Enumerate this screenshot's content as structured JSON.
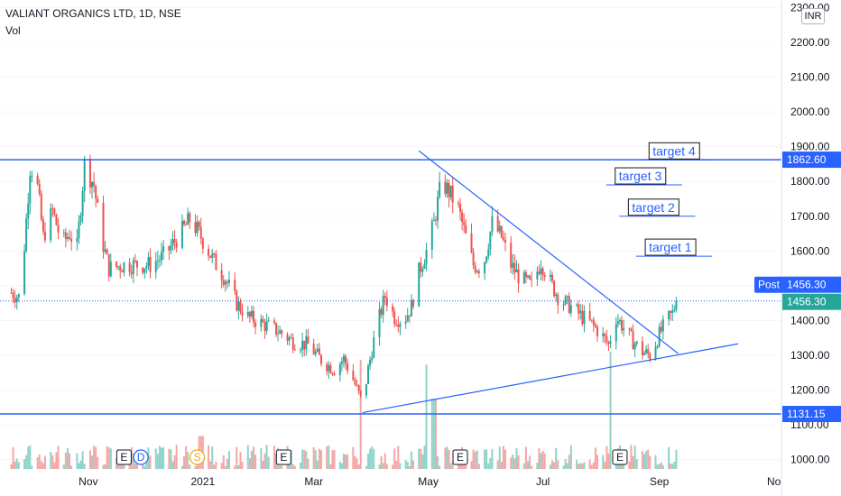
{
  "header": {
    "title": "VALIANT ORGANICS LTD, 1D, NSE",
    "indicator": "Vol",
    "currency": "INR"
  },
  "colors": {
    "up": "#26a69a",
    "down": "#ef5350",
    "line": "#2962ff",
    "grid": "#e0e3eb"
  },
  "chart_data": {
    "type": "candlestick",
    "symbol": "VALIANT ORGANICS LTD",
    "interval": "1D",
    "exchange": "NSE",
    "ylim": [
      960,
      2330
    ],
    "y_ticks": [
      1000,
      1100,
      1200,
      1300,
      1400,
      1500,
      1600,
      1700,
      1800,
      1900,
      2000,
      2100,
      2200,
      2300
    ],
    "y_tick_labels": [
      "1000.00",
      "1100.00",
      "1200.00",
      "1300.00",
      "1400.00",
      "1500.00",
      "1600.00",
      "1700.00",
      "1800.00",
      "1900.00",
      "2000.00",
      "2100.00",
      "2200.00",
      "2300.00"
    ],
    "x_ticks": [
      "Nov",
      "2021",
      "Mar",
      "May",
      "Jul",
      "Sep",
      "No"
    ],
    "x_tick_dates": [
      "2020-11-01",
      "2021-01-01",
      "2021-03-01",
      "2021-05-01",
      "2021-07-01",
      "2021-09-01",
      "2021-11-01"
    ],
    "x_range": [
      "2020-09-15",
      "2021-11-05"
    ],
    "last_price": 1456.3,
    "last_price_label": "1456.30",
    "post_label": "Post",
    "post_price_label": "1456.30",
    "horizontal_levels": [
      {
        "value": 1862.6,
        "label": "1862.60"
      },
      {
        "value": 1131.15,
        "label": "1131.15"
      }
    ],
    "trendlines": [
      {
        "points": [
          [
            "2021-04-26",
            1888
          ],
          [
            "2021-09-11",
            1305
          ]
        ]
      },
      {
        "points": [
          [
            "2021-03-27",
            1135
          ],
          [
            "2021-10-13",
            1333
          ]
        ]
      }
    ],
    "targets": [
      {
        "label": "target 4",
        "date": "2021-09-08",
        "value": 1862
      },
      {
        "label": "target 3",
        "date": "2021-08-21",
        "value": 1790
      },
      {
        "label": "target 2",
        "date": "2021-08-28",
        "value": 1700
      },
      {
        "label": "target 1",
        "date": "2021-09-06",
        "value": 1585
      }
    ],
    "event_markers": [
      {
        "type": "E",
        "date": "2020-11-20"
      },
      {
        "type": "D",
        "date": "2020-11-29"
      },
      {
        "type": "S",
        "date": "2020-12-29"
      },
      {
        "type": "E",
        "date": "2021-02-13"
      },
      {
        "type": "E",
        "date": "2021-05-18"
      },
      {
        "type": "E",
        "date": "2021-08-11"
      }
    ],
    "price_path": [
      [
        "2020-09-21",
        1480
      ],
      [
        "2020-09-26",
        1465
      ],
      [
        "2020-10-01",
        1840
      ],
      [
        "2020-10-04",
        1830
      ],
      [
        "2020-10-08",
        1640
      ],
      [
        "2020-10-13",
        1715
      ],
      [
        "2020-10-18",
        1620
      ],
      [
        "2020-10-22",
        1650
      ],
      [
        "2020-10-26",
        1610
      ],
      [
        "2020-10-30",
        1850
      ],
      [
        "2020-11-04",
        1790
      ],
      [
        "2020-11-08",
        1640
      ],
      [
        "2020-11-12",
        1550
      ],
      [
        "2020-11-20",
        1560
      ],
      [
        "2020-11-26",
        1560
      ],
      [
        "2020-12-04",
        1560
      ],
      [
        "2020-12-12",
        1590
      ],
      [
        "2020-12-20",
        1650
      ],
      [
        "2020-12-25",
        1690
      ],
      [
        "2020-12-29",
        1660
      ],
      [
        "2021-01-03",
        1610
      ],
      [
        "2021-01-08",
        1560
      ],
      [
        "2021-01-13",
        1520
      ],
      [
        "2021-01-19",
        1450
      ],
      [
        "2021-01-25",
        1410
      ],
      [
        "2021-02-02",
        1390
      ],
      [
        "2021-02-10",
        1370
      ],
      [
        "2021-02-18",
        1340
      ],
      [
        "2021-02-26",
        1330
      ],
      [
        "2021-03-06",
        1280
      ],
      [
        "2021-03-12",
        1260
      ],
      [
        "2021-03-17",
        1290
      ],
      [
        "2021-03-22",
        1230
      ],
      [
        "2021-03-27",
        1160
      ],
      [
        "2021-03-30",
        1260
      ],
      [
        "2021-04-03",
        1370
      ],
      [
        "2021-04-08",
        1470
      ],
      [
        "2021-04-13",
        1410
      ],
      [
        "2021-04-18",
        1400
      ],
      [
        "2021-04-22",
        1440
      ],
      [
        "2021-04-26",
        1540
      ],
      [
        "2021-04-30",
        1600
      ],
      [
        "2021-05-04",
        1680
      ],
      [
        "2021-05-08",
        1800
      ],
      [
        "2021-05-12",
        1770
      ],
      [
        "2021-05-17",
        1720
      ],
      [
        "2021-05-21",
        1640
      ],
      [
        "2021-05-25",
        1560
      ],
      [
        "2021-05-30",
        1550
      ],
      [
        "2021-06-04",
        1680
      ],
      [
        "2021-06-09",
        1640
      ],
      [
        "2021-06-14",
        1560
      ],
      [
        "2021-06-19",
        1520
      ],
      [
        "2021-06-25",
        1500
      ],
      [
        "2021-06-30",
        1570
      ],
      [
        "2021-07-05",
        1510
      ],
      [
        "2021-07-10",
        1460
      ],
      [
        "2021-07-16",
        1440
      ],
      [
        "2021-07-22",
        1410
      ],
      [
        "2021-07-27",
        1390
      ],
      [
        "2021-08-01",
        1360
      ],
      [
        "2021-08-05",
        1330
      ],
      [
        "2021-08-09",
        1410
      ],
      [
        "2021-08-13",
        1380
      ],
      [
        "2021-08-18",
        1340
      ],
      [
        "2021-08-23",
        1310
      ],
      [
        "2021-08-27",
        1300
      ],
      [
        "2021-09-01",
        1360
      ],
      [
        "2021-09-05",
        1400
      ],
      [
        "2021-09-08",
        1420
      ],
      [
        "2021-09-10",
        1456
      ]
    ],
    "volume_spikes": [
      {
        "date": "2020-12-31",
        "relative": 0.28
      },
      {
        "date": "2021-03-27",
        "relative": 0.93
      },
      {
        "date": "2021-05-01",
        "relative": 0.89
      },
      {
        "date": "2021-05-04",
        "relative": 0.6
      },
      {
        "date": "2021-08-07",
        "relative": 1.0
      }
    ]
  }
}
